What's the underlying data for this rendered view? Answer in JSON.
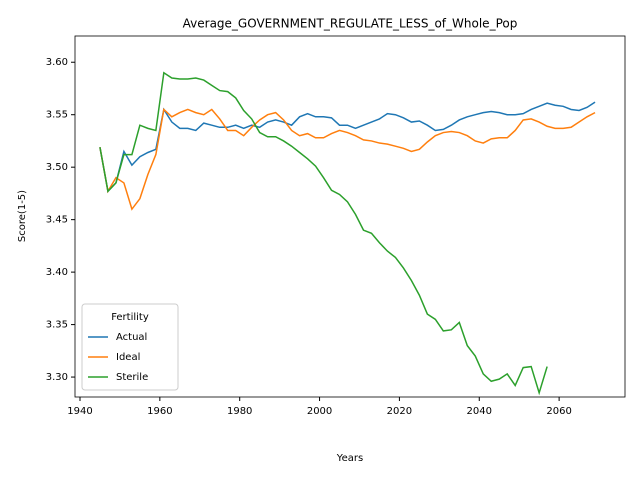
{
  "chart_data": {
    "type": "line",
    "title": "Average_GOVERNMENT_REGULATE_LESS_of_Whole_Pop",
    "xlabel": "Years",
    "ylabel": "Score(1-5)",
    "legend_title": "Fertility",
    "legend": "lower left",
    "x": [
      1945,
      1947,
      1949,
      1951,
      1953,
      1955,
      1957,
      1959,
      1961,
      1963,
      1965,
      1967,
      1969,
      1971,
      1973,
      1975,
      1977,
      1979,
      1981,
      1983,
      1985,
      1987,
      1989,
      1991,
      1993,
      1995,
      1997,
      1999,
      2001,
      2003,
      2005,
      2007,
      2009,
      2011,
      2013,
      2015,
      2017,
      2019,
      2021,
      2023,
      2025,
      2027,
      2029,
      2031,
      2033,
      2035,
      2037,
      2039,
      2041,
      2043,
      2045,
      2047,
      2049,
      2051,
      2053,
      2055,
      2057,
      2059,
      2061,
      2063,
      2065,
      2067,
      2069
    ],
    "series": [
      {
        "name": "Actual",
        "color": "#1f77b4",
        "values": [
          3.519,
          3.477,
          3.485,
          3.515,
          3.502,
          3.51,
          3.514,
          3.517,
          3.555,
          3.543,
          3.537,
          3.537,
          3.535,
          3.542,
          3.54,
          3.538,
          3.538,
          3.54,
          3.537,
          3.54,
          3.538,
          3.543,
          3.545,
          3.543,
          3.54,
          3.548,
          3.551,
          3.548,
          3.548,
          3.547,
          3.54,
          3.54,
          3.537,
          3.54,
          3.543,
          3.546,
          3.551,
          3.55,
          3.547,
          3.543,
          3.544,
          3.54,
          3.535,
          3.536,
          3.54,
          3.545,
          3.548,
          3.55,
          3.552,
          3.553,
          3.552,
          3.55,
          3.55,
          3.551,
          3.555,
          3.558,
          3.561,
          3.559,
          3.558,
          3.555,
          3.554,
          3.557,
          3.562
        ]
      },
      {
        "name": "Ideal",
        "color": "#ff7f0e",
        "values": [
          3.519,
          3.477,
          3.49,
          3.485,
          3.46,
          3.47,
          3.493,
          3.512,
          3.555,
          3.548,
          3.552,
          3.555,
          3.552,
          3.55,
          3.555,
          3.546,
          3.535,
          3.535,
          3.53,
          3.538,
          3.545,
          3.55,
          3.552,
          3.545,
          3.535,
          3.53,
          3.532,
          3.528,
          3.528,
          3.532,
          3.535,
          3.533,
          3.53,
          3.526,
          3.525,
          3.523,
          3.522,
          3.52,
          3.518,
          3.515,
          3.517,
          3.524,
          3.53,
          3.533,
          3.534,
          3.533,
          3.53,
          3.525,
          3.523,
          3.527,
          3.528,
          3.528,
          3.535,
          3.545,
          3.546,
          3.543,
          3.539,
          3.537,
          3.537,
          3.538,
          3.543,
          3.548,
          3.552
        ]
      },
      {
        "name": "Sterile",
        "color": "#2ca02c",
        "values": [
          3.519,
          3.477,
          3.485,
          3.512,
          3.512,
          3.54,
          3.537,
          3.535,
          3.59,
          3.585,
          3.584,
          3.584,
          3.585,
          3.583,
          3.578,
          3.573,
          3.572,
          3.566,
          3.554,
          3.546,
          3.533,
          3.529,
          3.529,
          3.525,
          3.52,
          3.514,
          3.508,
          3.501,
          3.49,
          3.478,
          3.474,
          3.467,
          3.455,
          3.44,
          3.437,
          3.428,
          3.42,
          3.414,
          3.404,
          3.392,
          3.378,
          3.36,
          3.355,
          3.344,
          3.345,
          3.352,
          3.33,
          3.32,
          3.303,
          3.296,
          3.298,
          3.303,
          3.292,
          3.309,
          3.31,
          3.285,
          3.31,
          null,
          null,
          null,
          null,
          null,
          null
        ]
      }
    ],
    "xlim": [
      1938.75,
      2076.5
    ],
    "xticks": [
      1940,
      1960,
      1980,
      2000,
      2020,
      2040,
      2060
    ],
    "ylim": [
      3.281,
      3.625
    ],
    "yticks": [
      {
        "value": 3.3,
        "label": "3.30"
      },
      3.35,
      {
        "value": 3.4,
        "label": "3.40"
      },
      3.45,
      {
        "value": 3.5,
        "label": "3.50"
      },
      3.55,
      {
        "value": 3.6,
        "label": "3.60"
      }
    ],
    "grid": false
  }
}
